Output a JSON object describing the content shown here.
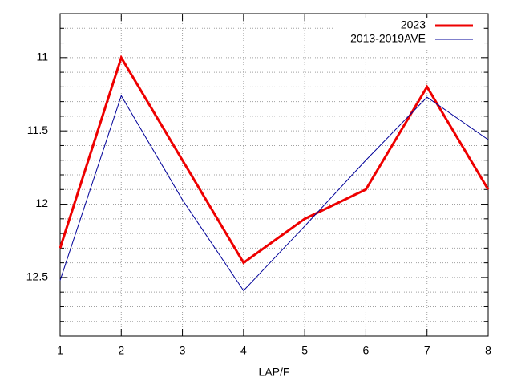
{
  "chart_data": {
    "type": "line",
    "x_label": "LAP/F",
    "x": [
      1,
      2,
      3,
      4,
      5,
      6,
      7,
      8
    ],
    "xlim": [
      1,
      8
    ],
    "xticks": [
      1,
      2,
      3,
      4,
      5,
      6,
      7,
      8
    ],
    "ylim": [
      12.9,
      10.7
    ],
    "yticks": [
      11,
      11.5,
      12,
      12.5
    ],
    "yminorticks": [
      10.8,
      10.9,
      11.1,
      11.2,
      11.3,
      11.4,
      11.6,
      11.7,
      11.8,
      11.9,
      12.1,
      12.2,
      12.3,
      12.4,
      12.6,
      12.7,
      12.8
    ],
    "grid": true,
    "legend": "top-right",
    "series": [
      {
        "name": "2023",
        "color": "#ee0000",
        "width": 3,
        "values": [
          12.3,
          11.0,
          11.7,
          12.4,
          12.1,
          11.9,
          11.2,
          11.9
        ]
      },
      {
        "name": "2013-2019AVE",
        "color": "#000099",
        "width": 1,
        "values": [
          12.52,
          11.26,
          11.97,
          12.59,
          12.15,
          11.7,
          11.27,
          11.56
        ]
      }
    ]
  }
}
